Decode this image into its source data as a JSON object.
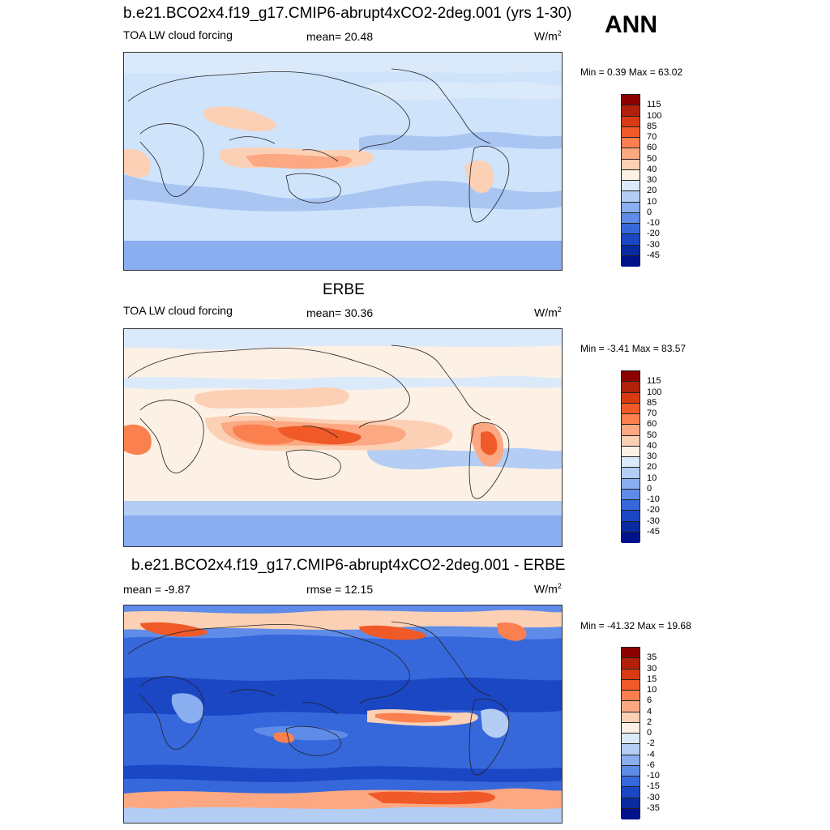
{
  "season_label": "ANN",
  "panels": [
    {
      "title": "b.e21.BCO2x4.f19_g17.CMIP6-abrupt4xCO2-2deg.001 (yrs 1-30)",
      "left_label": "TOA LW cloud forcing",
      "center_label": "mean=  20.48",
      "units_base": "W/m",
      "units_exp": "2",
      "minmax": "Min =   0.39 Max =  63.02",
      "colorbar_labels": [
        "115",
        "100",
        "85",
        "70",
        "60",
        "50",
        "40",
        "30",
        "20",
        "10",
        "0",
        "-10",
        "-20",
        "-30",
        "-45"
      ],
      "colorbar_colors": [
        "#8b0000",
        "#b0200a",
        "#d93a12",
        "#f05a28",
        "#fb8050",
        "#fca882",
        "#fcd0b4",
        "#fdf0e4",
        "#dbeafa",
        "#b3cdf5",
        "#8aaef0",
        "#5e8ce8",
        "#3668dc",
        "#1b46c4",
        "#0a2aa0",
        "#00128a"
      ],
      "map_palette": "light-blue with orange tropics"
    },
    {
      "title": "ERBE",
      "left_label": "TOA LW cloud forcing",
      "center_label": "mean=  30.36",
      "units_base": "W/m",
      "units_exp": "2",
      "minmax": "Min =  -3.41 Max =  83.57",
      "colorbar_labels": [
        "115",
        "100",
        "85",
        "70",
        "60",
        "50",
        "40",
        "30",
        "20",
        "10",
        "0",
        "-10",
        "-20",
        "-30",
        "-45"
      ],
      "colorbar_colors": [
        "#8b0000",
        "#b0200a",
        "#d93a12",
        "#f05a28",
        "#fb8050",
        "#fca882",
        "#fcd0b4",
        "#fdf0e4",
        "#dbeafa",
        "#b3cdf5",
        "#8aaef0",
        "#5e8ce8",
        "#3668dc",
        "#1b46c4",
        "#0a2aa0",
        "#00128a"
      ],
      "map_palette": "peach with red maritime continent"
    },
    {
      "title": "b.e21.BCO2x4.f19_g17.CMIP6-abrupt4xCO2-2deg.001 - ERBE",
      "left_label": "mean =  -9.87",
      "center_label": "rmse =  12.15",
      "units_base": "W/m",
      "units_exp": "2",
      "minmax": "Min = -41.32 Max =  19.68",
      "colorbar_labels": [
        "35",
        "30",
        "15",
        "10",
        "6",
        "4",
        "2",
        "0",
        "-2",
        "-4",
        "-6",
        "-10",
        "-15",
        "-30",
        "-35"
      ],
      "colorbar_colors": [
        "#8b0000",
        "#b0200a",
        "#d93a12",
        "#f05a28",
        "#fb8050",
        "#fca882",
        "#fcd0b4",
        "#fdf0e4",
        "#dbeafa",
        "#b3cdf5",
        "#8aaef0",
        "#5e8ce8",
        "#3668dc",
        "#1b46c4",
        "#0a2aa0",
        "#00128a"
      ],
      "map_palette": "deep blue with red Antarctic band"
    }
  ]
}
